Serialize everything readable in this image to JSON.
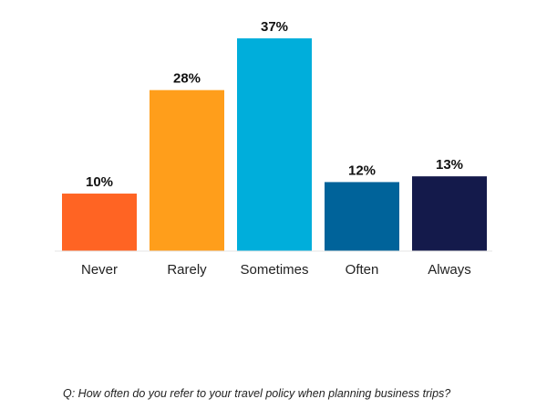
{
  "chart_data": {
    "type": "bar",
    "categories": [
      "Never",
      "Rarely",
      "Sometimes",
      "Often",
      "Always"
    ],
    "values": [
      10,
      28,
      37,
      12,
      13
    ],
    "value_labels": [
      "10%",
      "28%",
      "37%",
      "12%",
      "13%"
    ],
    "colors": [
      "#ff6423",
      "#ff9e1b",
      "#00aedb",
      "#00639a",
      "#141a4b"
    ],
    "unit": "%",
    "ylim": [
      0,
      37
    ],
    "grid": false,
    "legend": "none"
  },
  "footnote": {
    "question": "Q: How often do you refer to your travel policy when planning business trips?"
  }
}
